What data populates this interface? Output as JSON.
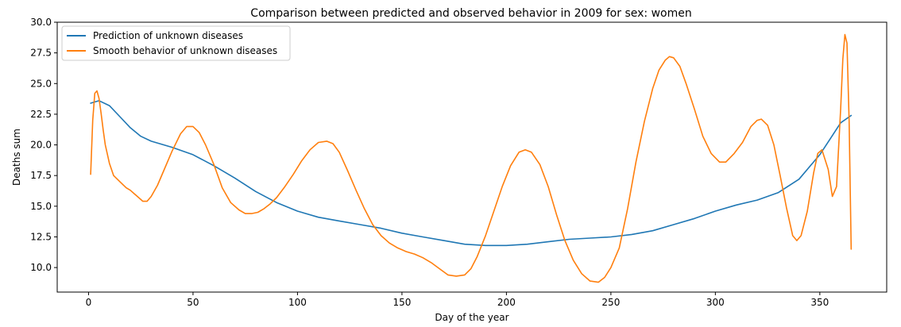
{
  "chart_data": {
    "type": "line",
    "title": "Comparison between predicted and observed behavior in 2009 for sex: women",
    "xlabel": "Day of the year",
    "ylabel": "Deaths sum",
    "xlim": [
      -15,
      382
    ],
    "ylim": [
      8.0,
      30.0
    ],
    "x_ticks": [
      0,
      50,
      100,
      150,
      200,
      250,
      300,
      350
    ],
    "y_ticks": [
      10.0,
      12.5,
      15.0,
      17.5,
      20.0,
      22.5,
      25.0,
      27.5,
      30.0
    ],
    "x_tick_labels": [
      "0",
      "50",
      "100",
      "150",
      "200",
      "250",
      "300",
      "350"
    ],
    "y_tick_labels": [
      "10.0",
      "12.5",
      "15.0",
      "17.5",
      "20.0",
      "22.5",
      "25.0",
      "27.5",
      "30.0"
    ],
    "grid": false,
    "legend_position": "top-left",
    "series": [
      {
        "name": "Prediction of unknown diseases",
        "color": "#1f77b4",
        "x": [
          1,
          5,
          10,
          15,
          20,
          25,
          30,
          40,
          50,
          60,
          70,
          80,
          90,
          100,
          110,
          120,
          130,
          140,
          150,
          160,
          170,
          180,
          190,
          200,
          210,
          220,
          230,
          240,
          250,
          260,
          270,
          280,
          290,
          300,
          310,
          320,
          330,
          340,
          350,
          355,
          360,
          365
        ],
        "y": [
          23.4,
          23.6,
          23.2,
          22.3,
          21.4,
          20.7,
          20.3,
          19.8,
          19.2,
          18.3,
          17.3,
          16.2,
          15.3,
          14.6,
          14.1,
          13.8,
          13.5,
          13.2,
          12.8,
          12.5,
          12.2,
          11.9,
          11.8,
          11.8,
          11.9,
          12.1,
          12.3,
          12.4,
          12.5,
          12.7,
          13.0,
          13.5,
          14.0,
          14.6,
          15.1,
          15.5,
          16.1,
          17.2,
          19.2,
          20.5,
          21.8,
          22.4
        ]
      },
      {
        "name": "Smooth behavior of unknown diseases",
        "color": "#ff7f0e",
        "x": [
          1,
          2,
          3,
          4,
          5,
          6,
          7,
          8,
          10,
          12,
          15,
          18,
          20,
          22,
          24,
          26,
          28,
          30,
          33,
          36,
          40,
          44,
          47,
          50,
          53,
          56,
          60,
          64,
          68,
          72,
          75,
          78,
          81,
          84,
          87,
          90,
          94,
          98,
          102,
          106,
          110,
          114,
          117,
          120,
          124,
          128,
          132,
          136,
          140,
          144,
          148,
          152,
          156,
          160,
          164,
          168,
          172,
          176,
          180,
          183,
          186,
          190,
          194,
          198,
          202,
          206,
          209,
          212,
          216,
          220,
          224,
          228,
          232,
          236,
          240,
          244,
          247,
          250,
          254,
          258,
          262,
          266,
          270,
          273,
          276,
          278,
          280,
          283,
          286,
          290,
          294,
          298,
          302,
          305,
          309,
          313,
          317,
          320,
          322,
          325,
          328,
          331,
          334,
          337,
          339,
          341,
          344,
          347,
          349,
          351,
          354,
          356,
          358,
          360,
          361,
          362,
          363,
          364,
          365
        ],
        "y": [
          17.6,
          22.0,
          24.2,
          24.4,
          23.8,
          22.6,
          21.2,
          20.0,
          18.5,
          17.5,
          17.0,
          16.5,
          16.3,
          16.0,
          15.7,
          15.4,
          15.4,
          15.8,
          16.7,
          17.9,
          19.5,
          20.9,
          21.5,
          21.5,
          21.0,
          20.0,
          18.4,
          16.5,
          15.3,
          14.7,
          14.4,
          14.4,
          14.5,
          14.8,
          15.2,
          15.7,
          16.6,
          17.6,
          18.7,
          19.6,
          20.2,
          20.3,
          20.1,
          19.4,
          17.9,
          16.3,
          14.8,
          13.5,
          12.6,
          12.0,
          11.6,
          11.3,
          11.1,
          10.8,
          10.4,
          9.9,
          9.4,
          9.3,
          9.4,
          9.9,
          10.9,
          12.6,
          14.6,
          16.6,
          18.3,
          19.4,
          19.6,
          19.4,
          18.4,
          16.6,
          14.3,
          12.2,
          10.6,
          9.5,
          8.9,
          8.8,
          9.2,
          10.0,
          11.6,
          14.8,
          18.6,
          21.9,
          24.6,
          26.1,
          26.9,
          27.2,
          27.1,
          26.4,
          25.0,
          22.9,
          20.7,
          19.3,
          18.6,
          18.6,
          19.3,
          20.2,
          21.5,
          22.0,
          22.1,
          21.6,
          20.0,
          17.5,
          14.9,
          12.6,
          12.2,
          12.6,
          14.6,
          17.7,
          19.3,
          19.6,
          18.0,
          15.8,
          16.6,
          23.0,
          27.0,
          29.0,
          28.3,
          22.0,
          11.5
        ]
      }
    ]
  }
}
